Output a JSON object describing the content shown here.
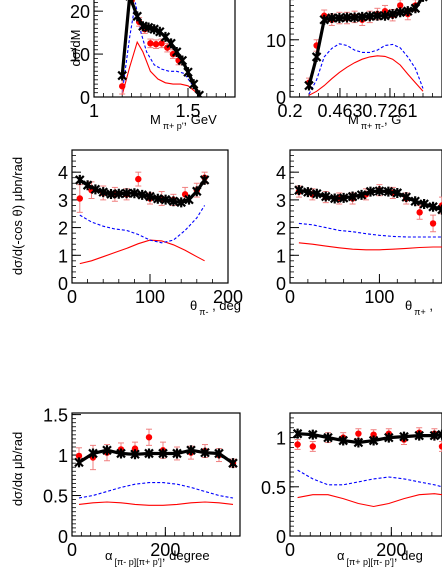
{
  "colors": {
    "model": "#000000",
    "data": "#ff0000",
    "component_dashed": "#0000ff",
    "component_solid": "#ff0000",
    "errorbar": "#f08080"
  },
  "chart_data": [
    {
      "type": "line",
      "ylabel": "dσ/dM",
      "xlabel_main": "M",
      "xlabel_sub": "π+ p'",
      "xlabel_unit": ",  GeV",
      "xlim": [
        1.0,
        1.75
      ],
      "ylim": [
        0,
        24
      ],
      "xticks": [
        {
          "v": 1.0,
          "label": "1"
        },
        {
          "v": 1.5,
          "label": "1.5"
        }
      ],
      "yticks": [
        {
          "v": 0,
          "label": "0"
        },
        {
          "v": 10,
          "label": "10"
        },
        {
          "v": 20,
          "label": "20"
        }
      ],
      "model": {
        "x": [
          1.15,
          1.19,
          1.23,
          1.26,
          1.29,
          1.32,
          1.35,
          1.38,
          1.41,
          1.44,
          1.47,
          1.5,
          1.53,
          1.56
        ],
        "y": [
          5.0,
          23.5,
          18.8,
          16.5,
          16.2,
          15.8,
          15.2,
          14.0,
          12.5,
          10.5,
          8.5,
          5.8,
          3.0,
          0.4
        ]
      },
      "data": {
        "x": [
          1.15,
          1.2,
          1.24,
          1.27,
          1.3,
          1.33,
          1.36,
          1.39,
          1.42,
          1.45
        ],
        "y": [
          2.5,
          22.5,
          17.5,
          15.8,
          12.5,
          12.3,
          12.5,
          11.5,
          10.0,
          8.5
        ],
        "err": [
          1.8,
          1.0,
          1.0,
          1.0,
          1.0,
          1.0,
          1.0,
          1.0,
          1.0,
          1.0
        ]
      },
      "dashed": {
        "x": [
          1.15,
          1.19,
          1.22,
          1.25,
          1.28,
          1.32,
          1.36,
          1.4,
          1.44,
          1.48,
          1.52,
          1.56
        ],
        "y": [
          1.0,
          14.0,
          22.0,
          15.0,
          10.5,
          7.5,
          6.5,
          6.0,
          6.0,
          5.5,
          3.0,
          0.3
        ]
      },
      "solid": {
        "x": [
          1.15,
          1.19,
          1.23,
          1.26,
          1.3,
          1.34,
          1.38,
          1.42,
          1.46,
          1.5,
          1.54,
          1.56
        ],
        "y": [
          0.5,
          7.0,
          12.8,
          10.5,
          6.0,
          4.2,
          3.3,
          3.0,
          3.0,
          2.6,
          1.2,
          0.2
        ]
      }
    },
    {
      "type": "line",
      "ylabel": "",
      "xlabel_main": "M",
      "xlabel_sub": "π+ π-",
      "xlabel_unit": ",  G",
      "xlim": [
        0.2,
        1.0
      ],
      "ylim": [
        0,
        18
      ],
      "xticks": [
        {
          "v": 0.2,
          "label": "0.2"
        },
        {
          "v": 0.463,
          "label": "0.463"
        },
        {
          "v": 0.7261,
          "label": "0.7261"
        }
      ],
      "yticks": [
        {
          "v": 0,
          "label": "0"
        },
        {
          "v": 10,
          "label": "10"
        }
      ],
      "model": {
        "x": [
          0.3,
          0.34,
          0.38,
          0.42,
          0.46,
          0.5,
          0.54,
          0.58,
          0.62,
          0.66,
          0.7,
          0.74,
          0.78,
          0.82,
          0.86,
          0.9
        ],
        "y": [
          2.0,
          7.0,
          13.5,
          13.8,
          13.8,
          13.9,
          13.9,
          14.0,
          14.1,
          14.2,
          14.2,
          14.5,
          14.8,
          15.0,
          15.5,
          17.5
        ]
      },
      "data": {
        "x": [
          0.3,
          0.34,
          0.38,
          0.42,
          0.46,
          0.5,
          0.54,
          0.58,
          0.62,
          0.66,
          0.7,
          0.74,
          0.78,
          0.82,
          0.86
        ],
        "y": [
          2.5,
          9.0,
          14.2,
          13.5,
          13.8,
          13.8,
          14.0,
          13.5,
          14.0,
          14.5,
          15.0,
          14.3,
          16.0,
          14.5,
          16.0
        ],
        "err": [
          0.8,
          1.0,
          1.0,
          1.0,
          1.0,
          1.0,
          1.0,
          1.0,
          1.0,
          1.0,
          1.0,
          1.0,
          1.0,
          1.0,
          1.0
        ]
      },
      "dashed": {
        "x": [
          0.3,
          0.34,
          0.38,
          0.42,
          0.46,
          0.5,
          0.54,
          0.58,
          0.62,
          0.66,
          0.7,
          0.74,
          0.78,
          0.82,
          0.86,
          0.9
        ],
        "y": [
          0.5,
          3.0,
          7.0,
          8.5,
          9.3,
          9.0,
          8.2,
          7.8,
          7.8,
          8.2,
          9.0,
          9.2,
          8.6,
          7.0,
          5.0,
          1.5
        ]
      },
      "solid": {
        "x": [
          0.3,
          0.34,
          0.38,
          0.42,
          0.46,
          0.5,
          0.54,
          0.58,
          0.62,
          0.66,
          0.7,
          0.74,
          0.78,
          0.82,
          0.86,
          0.9
        ],
        "y": [
          0.3,
          1.0,
          2.0,
          3.2,
          4.3,
          5.2,
          6.0,
          6.6,
          7.0,
          7.2,
          7.1,
          6.6,
          5.6,
          4.0,
          2.5,
          1.0
        ]
      }
    },
    {
      "type": "line",
      "ylabel": "dσ/d(-cos θ) μbn/rad",
      "xlabel_main": "θ",
      "xlabel_sub": "π-",
      "xlabel_unit": " , deg",
      "xlim": [
        0,
        200
      ],
      "ylim": [
        0,
        4.8
      ],
      "xticks": [
        {
          "v": 0,
          "label": "0"
        },
        {
          "v": 100,
          "label": "100"
        },
        {
          "v": 200,
          "label": "200"
        }
      ],
      "yticks": [
        {
          "v": 0,
          "label": "0"
        },
        {
          "v": 1,
          "label": "1"
        },
        {
          "v": 2,
          "label": "2"
        },
        {
          "v": 3,
          "label": "3"
        },
        {
          "v": 4,
          "label": "4"
        }
      ],
      "model": {
        "x": [
          10,
          20,
          30,
          40,
          50,
          60,
          70,
          80,
          90,
          100,
          110,
          120,
          130,
          140,
          150,
          160,
          170
        ],
        "y": [
          3.72,
          3.53,
          3.38,
          3.28,
          3.21,
          3.22,
          3.24,
          3.24,
          3.18,
          3.12,
          3.04,
          3.01,
          2.95,
          2.91,
          3.01,
          3.31,
          3.72
        ]
      },
      "data": {
        "x": [
          10,
          25,
          40,
          55,
          70,
          85,
          100,
          115,
          130,
          145,
          160,
          170
        ],
        "y": [
          3.05,
          3.35,
          3.25,
          3.2,
          3.2,
          3.75,
          3.05,
          3.05,
          3.0,
          3.2,
          3.35,
          3.8
        ],
        "err": [
          0.5,
          0.3,
          0.25,
          0.25,
          0.2,
          0.25,
          0.2,
          0.25,
          0.2,
          0.25,
          0.25,
          0.2
        ]
      },
      "dashed": {
        "x": [
          10,
          25,
          40,
          55,
          70,
          85,
          100,
          115,
          130,
          145,
          160,
          170
        ],
        "y": [
          2.45,
          2.2,
          2.05,
          1.95,
          1.9,
          1.75,
          1.55,
          1.45,
          1.55,
          1.9,
          2.35,
          2.8
        ]
      },
      "solid": {
        "x": [
          10,
          25,
          40,
          55,
          70,
          85,
          100,
          115,
          130,
          145,
          160,
          170
        ],
        "y": [
          0.7,
          0.8,
          0.95,
          1.1,
          1.25,
          1.42,
          1.55,
          1.52,
          1.38,
          1.18,
          0.95,
          0.8
        ]
      }
    },
    {
      "type": "line",
      "ylabel": "",
      "xlabel_main": "θ",
      "xlabel_sub": "π+",
      "xlabel_unit": " ,",
      "xlim": [
        0,
        170
      ],
      "ylim": [
        0,
        4.8
      ],
      "xticks": [
        {
          "v": 0,
          "label": "0"
        },
        {
          "v": 100,
          "label": "100"
        }
      ],
      "yticks": [
        {
          "v": 0,
          "label": "0"
        },
        {
          "v": 1,
          "label": "1"
        },
        {
          "v": 2,
          "label": "2"
        },
        {
          "v": 3,
          "label": "3"
        },
        {
          "v": 4,
          "label": "4"
        }
      ],
      "model": {
        "x": [
          10,
          20,
          30,
          40,
          50,
          60,
          70,
          80,
          90,
          100,
          110,
          120,
          130,
          140,
          150,
          160,
          170
        ],
        "y": [
          3.35,
          3.28,
          3.22,
          3.12,
          3.05,
          3.07,
          3.12,
          3.18,
          3.3,
          3.32,
          3.3,
          3.25,
          3.1,
          2.95,
          2.85,
          2.75,
          2.65
        ]
      },
      "data": {
        "x": [
          10,
          25,
          40,
          55,
          70,
          85,
          100,
          115,
          130,
          145,
          160,
          170
        ],
        "y": [
          3.3,
          3.2,
          3.1,
          3.05,
          3.05,
          3.2,
          3.35,
          3.25,
          3.05,
          2.55,
          2.15,
          2.8
        ],
        "err": [
          0.2,
          0.2,
          0.2,
          0.2,
          0.2,
          0.2,
          0.2,
          0.2,
          0.2,
          0.25,
          0.3,
          0.3
        ]
      },
      "dashed": {
        "x": [
          10,
          25,
          40,
          55,
          70,
          85,
          100,
          115,
          130,
          145,
          160,
          170
        ],
        "y": [
          2.15,
          2.1,
          2.0,
          1.9,
          1.85,
          1.78,
          1.72,
          1.68,
          1.66,
          1.66,
          1.66,
          1.66
        ]
      },
      "solid": {
        "x": [
          10,
          25,
          40,
          55,
          70,
          85,
          100,
          115,
          130,
          145,
          160,
          170
        ],
        "y": [
          1.45,
          1.4,
          1.33,
          1.27,
          1.22,
          1.2,
          1.2,
          1.22,
          1.25,
          1.28,
          1.3,
          1.3
        ]
      }
    },
    {
      "type": "line",
      "ylabel": "dσ/dα μb/rad",
      "xlabel_main": "α",
      "xlabel_sub": "[π- p][π+ p']",
      "xlabel_unit": ",  degree",
      "xlim": [
        0,
        360
      ],
      "ylim": [
        0,
        1.52
      ],
      "xticks": [
        {
          "v": 0,
          "label": "0"
        },
        {
          "v": 200,
          "label": "200"
        }
      ],
      "yticks": [
        {
          "v": 0,
          "label": "0"
        },
        {
          "v": 0.5,
          "label": "0.5"
        },
        {
          "v": 1,
          "label": "1"
        },
        {
          "v": 1.5,
          "label": "1.5"
        }
      ],
      "model": {
        "x": [
          15,
          45,
          75,
          105,
          135,
          165,
          195,
          225,
          255,
          285,
          315,
          345
        ],
        "y": [
          0.91,
          1.02,
          1.06,
          1.02,
          1.01,
          1.02,
          1.02,
          1.02,
          1.06,
          1.03,
          1.02,
          0.9
        ]
      },
      "data": {
        "x": [
          15,
          45,
          75,
          105,
          135,
          165,
          195,
          225,
          255,
          285,
          315,
          345
        ],
        "y": [
          0.99,
          0.97,
          1.03,
          1.07,
          1.08,
          1.22,
          1.06,
          1.02,
          1.03,
          1.05,
          1.0,
          0.9
        ],
        "err": [
          0.1,
          0.15,
          0.1,
          0.08,
          0.08,
          0.1,
          0.1,
          0.08,
          0.08,
          0.08,
          0.08,
          0.05
        ]
      },
      "dashed": {
        "x": [
          15,
          45,
          75,
          105,
          135,
          165,
          195,
          225,
          255,
          285,
          315,
          345
        ],
        "y": [
          0.47,
          0.5,
          0.55,
          0.6,
          0.64,
          0.66,
          0.66,
          0.64,
          0.6,
          0.55,
          0.5,
          0.47
        ]
      },
      "solid": {
        "x": [
          15,
          45,
          75,
          105,
          135,
          165,
          195,
          225,
          255,
          285,
          315,
          345
        ],
        "y": [
          0.39,
          0.41,
          0.42,
          0.41,
          0.39,
          0.38,
          0.38,
          0.39,
          0.41,
          0.42,
          0.41,
          0.39
        ]
      }
    },
    {
      "type": "line",
      "ylabel": "",
      "xlabel_main": "α",
      "xlabel_sub": "[π+ p][π- p']",
      "xlabel_unit": ",  deg",
      "xlim": [
        0,
        300
      ],
      "ylim": [
        0,
        1.25
      ],
      "xticks": [
        {
          "v": 0,
          "label": "0"
        },
        {
          "v": 200,
          "label": "200"
        }
      ],
      "yticks": [
        {
          "v": 0,
          "label": "0"
        },
        {
          "v": 0.5,
          "label": "0.5"
        },
        {
          "v": 1,
          "label": "1"
        }
      ],
      "model": {
        "x": [
          15,
          45,
          75,
          105,
          135,
          165,
          195,
          225,
          255,
          285,
          300
        ],
        "y": [
          1.04,
          1.03,
          1.0,
          0.97,
          0.95,
          0.97,
          1.0,
          1.01,
          1.02,
          1.02,
          1.03
        ]
      },
      "data": {
        "x": [
          15,
          45,
          75,
          105,
          135,
          165,
          195,
          225,
          255,
          285,
          300
        ],
        "y": [
          0.93,
          0.91,
          1.0,
          1.0,
          1.04,
          1.03,
          1.04,
          0.98,
          1.05,
          1.04,
          0.91
        ],
        "err": [
          0.05,
          0.05,
          0.05,
          0.05,
          0.05,
          0.05,
          0.05,
          0.05,
          0.05,
          0.05,
          0.05
        ]
      },
      "dashed": {
        "x": [
          15,
          45,
          75,
          105,
          135,
          165,
          195,
          225,
          255,
          285,
          300
        ],
        "y": [
          0.67,
          0.58,
          0.52,
          0.52,
          0.55,
          0.58,
          0.6,
          0.58,
          0.55,
          0.52,
          0.5
        ]
      },
      "solid": {
        "x": [
          15,
          45,
          75,
          105,
          135,
          165,
          195,
          225,
          255,
          285,
          300
        ],
        "y": [
          0.39,
          0.42,
          0.42,
          0.38,
          0.33,
          0.3,
          0.33,
          0.38,
          0.42,
          0.43,
          0.42
        ]
      }
    }
  ]
}
